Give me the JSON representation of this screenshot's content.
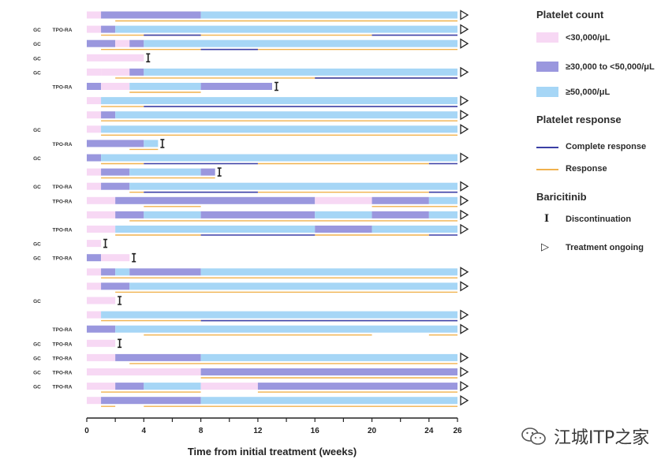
{
  "colors": {
    "low": "#f7d8f4",
    "mid": "#9a97de",
    "high": "#a6d6f6",
    "complete": "#3b3fa5",
    "response": "#f0b14c",
    "axis": "#222222"
  },
  "legend": {
    "platelet_heading": "Platelet count",
    "platelet_items": [
      {
        "key": "low",
        "label": "<30,000/μL"
      },
      {
        "key": "mid",
        "label": "≥30,000 to <50,000/μL"
      },
      {
        "key": "high",
        "label": "≥50,000/μL"
      }
    ],
    "response_heading": "Platelet response",
    "response_items": [
      {
        "key": "complete",
        "label": "Complete response"
      },
      {
        "key": "response",
        "label": "Response"
      }
    ],
    "baricitinib_heading": "Baricitinib",
    "baricitinib_items": [
      {
        "icon": "discontinuation",
        "glyph": "I",
        "label": "Discontinuation"
      },
      {
        "icon": "treatment-ongoing",
        "glyph": "▷",
        "label": "Treatment ongoing"
      }
    ]
  },
  "watermark": {
    "text": "江城ITP之家"
  },
  "chart_data": {
    "type": "swimmer",
    "xlabel": "Time from initial treatment (weeks)",
    "xlim": [
      0,
      26
    ],
    "xticks": [
      0,
      2,
      4,
      6,
      8,
      10,
      12,
      14,
      16,
      18,
      20,
      22,
      24,
      26
    ],
    "tick_labels": [
      "0",
      "",
      "4",
      "",
      "8",
      "",
      "12",
      "",
      "16",
      "",
      "20",
      "",
      "24",
      "26"
    ],
    "patients": [
      {
        "gc": "",
        "tpo": "",
        "segments": [
          [
            0,
            1,
            "low"
          ],
          [
            1,
            8,
            "mid"
          ],
          [
            8,
            26,
            "high"
          ]
        ],
        "cr": [],
        "resp": [
          [
            2,
            26
          ]
        ],
        "end": "ongoing"
      },
      {
        "gc": "GC",
        "tpo": "TPO-RA",
        "segments": [
          [
            0,
            1,
            "low"
          ],
          [
            1,
            2,
            "mid"
          ],
          [
            2,
            26,
            "high"
          ]
        ],
        "cr": [
          [
            4,
            8
          ],
          [
            20,
            26
          ]
        ],
        "resp": [
          [
            1,
            20
          ]
        ],
        "end": "ongoing"
      },
      {
        "gc": "GC",
        "tpo": "",
        "segments": [
          [
            0,
            2,
            "mid"
          ],
          [
            2,
            3,
            "low"
          ],
          [
            3,
            4,
            "mid"
          ],
          [
            4,
            26,
            "high"
          ]
        ],
        "cr": [
          [
            8,
            12
          ]
        ],
        "resp": [
          [
            1,
            26
          ]
        ],
        "end": "ongoing"
      },
      {
        "gc": "GC",
        "tpo": "",
        "segments": [
          [
            0,
            4,
            "low"
          ]
        ],
        "cr": [],
        "resp": [],
        "end": "discontinued"
      },
      {
        "gc": "GC",
        "tpo": "",
        "segments": [
          [
            0,
            1,
            "low"
          ],
          [
            1,
            3,
            "low"
          ],
          [
            3,
            4,
            "mid"
          ],
          [
            4,
            26,
            "high"
          ]
        ],
        "cr": [
          [
            16,
            26
          ]
        ],
        "resp": [
          [
            2,
            26
          ]
        ],
        "end": "ongoing"
      },
      {
        "gc": "",
        "tpo": "TPO-RA",
        "segments": [
          [
            0,
            1,
            "mid"
          ],
          [
            1,
            3,
            "low"
          ],
          [
            3,
            8,
            "high"
          ],
          [
            8,
            13,
            "mid"
          ]
        ],
        "cr": [],
        "resp": [
          [
            3,
            8
          ]
        ],
        "end": "discontinued"
      },
      {
        "gc": "",
        "tpo": "",
        "segments": [
          [
            0,
            1,
            "low"
          ],
          [
            1,
            26,
            "high"
          ]
        ],
        "cr": [
          [
            4,
            26
          ]
        ],
        "resp": [
          [
            1,
            4
          ]
        ],
        "end": "ongoing"
      },
      {
        "gc": "",
        "tpo": "",
        "segments": [
          [
            0,
            1,
            "low"
          ],
          [
            1,
            2,
            "mid"
          ],
          [
            2,
            26,
            "high"
          ]
        ],
        "cr": [],
        "resp": [
          [
            1,
            26
          ]
        ],
        "end": "ongoing"
      },
      {
        "gc": "GC",
        "tpo": "",
        "segments": [
          [
            0,
            1,
            "low"
          ],
          [
            1,
            26,
            "high"
          ]
        ],
        "cr": [],
        "resp": [
          [
            1,
            26
          ]
        ],
        "end": "ongoing"
      },
      {
        "gc": "",
        "tpo": "TPO-RA",
        "segments": [
          [
            0,
            4,
            "mid"
          ],
          [
            4,
            5,
            "high"
          ]
        ],
        "cr": [],
        "resp": [
          [
            3,
            5
          ]
        ],
        "end": "discontinued"
      },
      {
        "gc": "GC",
        "tpo": "",
        "segments": [
          [
            0,
            1,
            "mid"
          ],
          [
            1,
            26,
            "high"
          ]
        ],
        "cr": [
          [
            4,
            12
          ],
          [
            24,
            26
          ]
        ],
        "resp": [
          [
            1,
            4
          ],
          [
            12,
            24
          ]
        ],
        "end": "ongoing"
      },
      {
        "gc": "",
        "tpo": "",
        "segments": [
          [
            0,
            1,
            "low"
          ],
          [
            1,
            3,
            "mid"
          ],
          [
            3,
            8,
            "high"
          ],
          [
            8,
            9,
            "mid"
          ]
        ],
        "cr": [],
        "resp": [
          [
            1,
            9
          ]
        ],
        "end": "discontinued"
      },
      {
        "gc": "GC",
        "tpo": "TPO-RA",
        "segments": [
          [
            0,
            1,
            "low"
          ],
          [
            1,
            3,
            "mid"
          ],
          [
            3,
            26,
            "high"
          ]
        ],
        "cr": [
          [
            4,
            12
          ],
          [
            24,
            26
          ]
        ],
        "resp": [
          [
            3,
            4
          ],
          [
            12,
            24
          ]
        ],
        "end": "ongoing"
      },
      {
        "gc": "",
        "tpo": "TPO-RA",
        "segments": [
          [
            0,
            2,
            "low"
          ],
          [
            2,
            16,
            "mid"
          ],
          [
            16,
            20,
            "low"
          ],
          [
            20,
            24,
            "mid"
          ],
          [
            24,
            26,
            "high"
          ]
        ],
        "cr": [],
        "resp": [
          [
            4,
            8
          ],
          [
            20,
            26
          ]
        ],
        "end": "ongoing"
      },
      {
        "gc": "",
        "tpo": "",
        "segments": [
          [
            0,
            2,
            "low"
          ],
          [
            2,
            4,
            "mid"
          ],
          [
            4,
            8,
            "high"
          ],
          [
            8,
            16,
            "mid"
          ],
          [
            16,
            20,
            "high"
          ],
          [
            20,
            24,
            "mid"
          ],
          [
            24,
            26,
            "high"
          ]
        ],
        "cr": [],
        "resp": [
          [
            3,
            26
          ]
        ],
        "end": "ongoing"
      },
      {
        "gc": "",
        "tpo": "TPO-RA",
        "segments": [
          [
            0,
            2,
            "low"
          ],
          [
            2,
            16,
            "high"
          ],
          [
            16,
            20,
            "mid"
          ],
          [
            20,
            26,
            "high"
          ]
        ],
        "cr": [
          [
            8,
            16
          ],
          [
            24,
            26
          ]
        ],
        "resp": [
          [
            2,
            8
          ],
          [
            16,
            24
          ]
        ],
        "end": "ongoing"
      },
      {
        "gc": "GC",
        "tpo": "",
        "segments": [
          [
            0,
            1,
            "low"
          ]
        ],
        "cr": [],
        "resp": [],
        "end": "discontinued"
      },
      {
        "gc": "GC",
        "tpo": "TPO-RA",
        "segments": [
          [
            0,
            1,
            "mid"
          ],
          [
            1,
            3,
            "low"
          ]
        ],
        "cr": [],
        "resp": [],
        "end": "discontinued"
      },
      {
        "gc": "",
        "tpo": "",
        "segments": [
          [
            0,
            1,
            "low"
          ],
          [
            1,
            2,
            "mid"
          ],
          [
            2,
            3,
            "high"
          ],
          [
            3,
            8,
            "mid"
          ],
          [
            8,
            26,
            "high"
          ]
        ],
        "cr": [],
        "resp": [
          [
            1,
            26
          ]
        ],
        "end": "ongoing"
      },
      {
        "gc": "",
        "tpo": "",
        "segments": [
          [
            0,
            1,
            "low"
          ],
          [
            1,
            3,
            "mid"
          ],
          [
            3,
            26,
            "high"
          ]
        ],
        "cr": [],
        "resp": [
          [
            2,
            26
          ]
        ],
        "end": "ongoing"
      },
      {
        "gc": "GC",
        "tpo": "",
        "segments": [
          [
            0,
            2,
            "low"
          ]
        ],
        "cr": [],
        "resp": [],
        "end": "discontinued"
      },
      {
        "gc": "",
        "tpo": "",
        "segments": [
          [
            0,
            1,
            "low"
          ],
          [
            1,
            26,
            "high"
          ]
        ],
        "cr": [
          [
            8,
            26
          ]
        ],
        "resp": [
          [
            1,
            8
          ]
        ],
        "end": "ongoing"
      },
      {
        "gc": "",
        "tpo": "TPO-RA",
        "segments": [
          [
            0,
            2,
            "mid"
          ],
          [
            2,
            26,
            "high"
          ]
        ],
        "cr": [],
        "resp": [
          [
            4,
            20
          ],
          [
            24,
            26
          ]
        ],
        "end": "ongoing"
      },
      {
        "gc": "GC",
        "tpo": "TPO-RA",
        "segments": [
          [
            0,
            2,
            "low"
          ]
        ],
        "cr": [],
        "resp": [],
        "end": "discontinued"
      },
      {
        "gc": "GC",
        "tpo": "TPO-RA",
        "segments": [
          [
            0,
            2,
            "low"
          ],
          [
            2,
            8,
            "mid"
          ],
          [
            8,
            26,
            "high"
          ]
        ],
        "cr": [],
        "resp": [
          [
            3,
            26
          ]
        ],
        "end": "ongoing"
      },
      {
        "gc": "GC",
        "tpo": "TPO-RA",
        "segments": [
          [
            0,
            8,
            "low"
          ],
          [
            8,
            26,
            "mid"
          ]
        ],
        "cr": [],
        "resp": [
          [
            8,
            26
          ]
        ],
        "end": "ongoing"
      },
      {
        "gc": "GC",
        "tpo": "TPO-RA",
        "segments": [
          [
            0,
            2,
            "low"
          ],
          [
            2,
            4,
            "mid"
          ],
          [
            4,
            8,
            "high"
          ],
          [
            8,
            12,
            "low"
          ],
          [
            12,
            26,
            "mid"
          ]
        ],
        "cr": [],
        "resp": [
          [
            1,
            8
          ],
          [
            12,
            26
          ]
        ],
        "end": "ongoing"
      },
      {
        "gc": "",
        "tpo": "",
        "segments": [
          [
            0,
            1,
            "low"
          ],
          [
            1,
            8,
            "mid"
          ],
          [
            8,
            26,
            "high"
          ]
        ],
        "cr": [],
        "resp": [
          [
            1,
            2
          ],
          [
            4,
            26
          ]
        ],
        "end": "ongoing"
      }
    ]
  }
}
